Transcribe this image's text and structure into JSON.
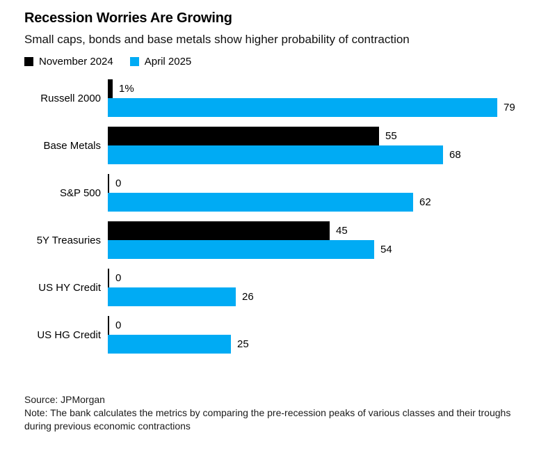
{
  "header": {
    "title": "Recession Worries Are Growing",
    "subtitle": "Small caps, bonds and base metals show higher probability of contraction"
  },
  "legend": [
    {
      "label": "November 2024",
      "color": "#000000"
    },
    {
      "label": "April 2025",
      "color": "#00ABF4"
    }
  ],
  "chart_data": {
    "type": "bar",
    "orientation": "horizontal",
    "title": "Recession Worries Are Growing",
    "subtitle": "Small caps, bonds and base metals show higher probability of contraction",
    "categories": [
      "Russell 2000",
      "Base Metals",
      "S&P 500",
      "5Y Treasuries",
      "US HY Credit",
      "US HG Credit"
    ],
    "series": [
      {
        "name": "November 2024",
        "color": "#000000",
        "values": [
          1,
          55,
          0,
          45,
          0,
          0
        ],
        "labels": [
          "1%",
          "55",
          "0",
          "45",
          "0",
          "0"
        ]
      },
      {
        "name": "April 2025",
        "color": "#00ABF4",
        "values": [
          79,
          68,
          62,
          54,
          26,
          25
        ],
        "labels": [
          "79",
          "68",
          "62",
          "54",
          "26",
          "25"
        ]
      }
    ],
    "xlim": [
      0,
      79
    ],
    "grid": false,
    "legend_position": "top",
    "zero_value_style": "tick-mark"
  },
  "footer": {
    "source": "Source: JPMorgan",
    "note": "Note: The bank calculates the metrics by comparing the pre-recession peaks of various classes and their troughs during previous economic contractions"
  }
}
